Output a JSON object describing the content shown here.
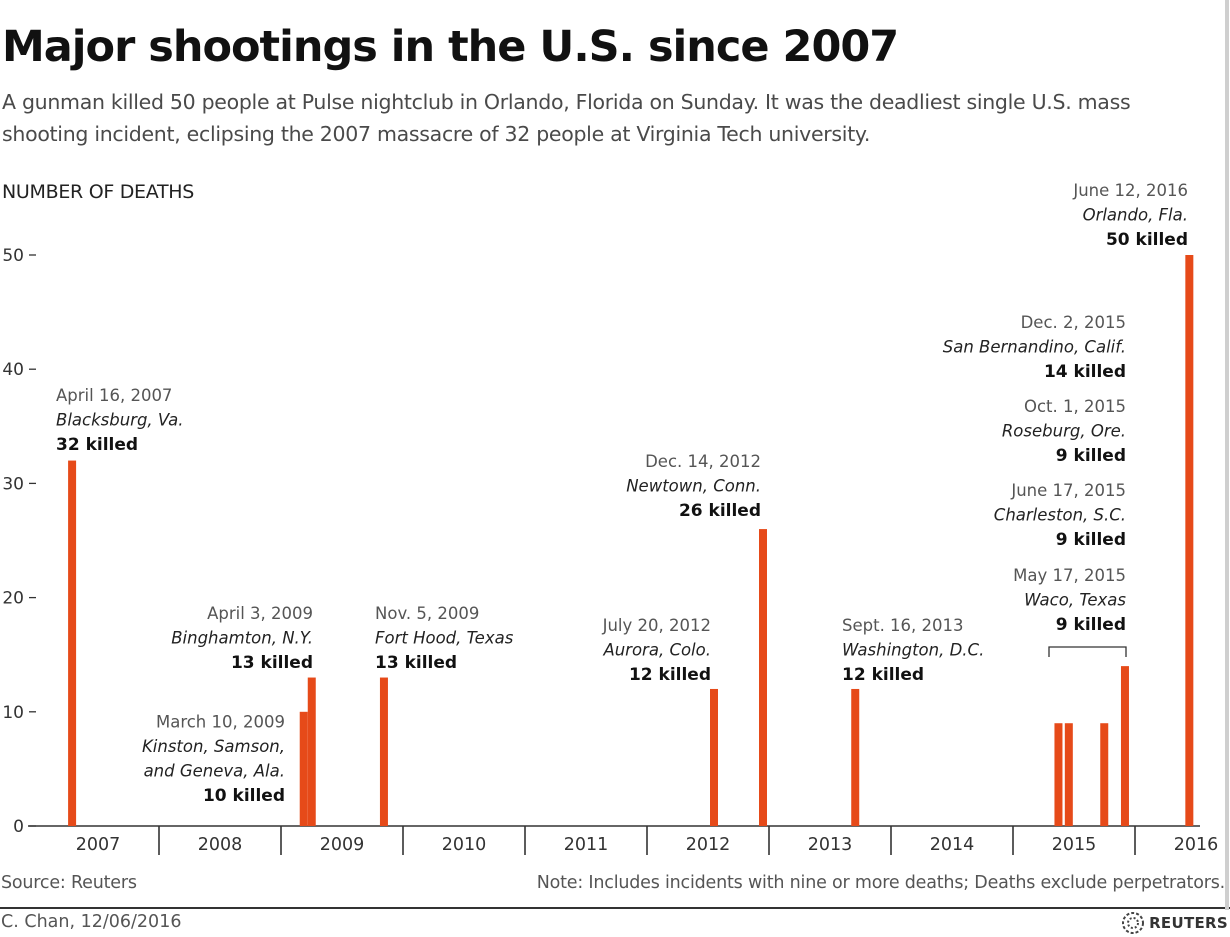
{
  "title": "Major shootings in the U.S. since 2007",
  "subtitle": "A gunman killed 50 people at Pulse nightclub in Orlando, Florida on Sunday. It was the deadliest single U.S. mass shooting incident, eclipsing the 2007 massacre of 32 people at Virginia Tech university.",
  "source": "Source: Reuters",
  "note": "Note: Includes incidents with nine or more deaths; Deaths exclude perpetrators.",
  "credit": "C. Chan,  12/06/2016",
  "logo_text": "REUTERS",
  "colors": {
    "bar": "#e64a19",
    "axis": "#333333",
    "text": "#222222",
    "muted": "#555555"
  },
  "chart_data": {
    "type": "bar",
    "ylabel": "NUMBER OF DEATHS",
    "ylim": [
      0,
      50
    ],
    "yticks": [
      0,
      10,
      20,
      30,
      40,
      50
    ],
    "x_start": "2007-01-01",
    "x_end": "2016-12-31",
    "xticks": [
      "2007",
      "2008",
      "2009",
      "2010",
      "2011",
      "2012",
      "2013",
      "2014",
      "2015",
      "2016"
    ],
    "grid": false,
    "series": [
      {
        "values": [
          {
            "date": "2007-04-16",
            "label_date": "April 16, 2007",
            "location": "Blacksburg, Va.",
            "killed": 32,
            "label": "32 killed",
            "align": "left"
          },
          {
            "date": "2009-03-10",
            "label_date": "March 10, 2009",
            "location": "Kinston, Samson, and Geneva, Ala.",
            "killed": 10,
            "label": "10 killed",
            "align": "right"
          },
          {
            "date": "2009-04-03",
            "label_date": "April 3, 2009",
            "location": "Binghamton, N.Y.",
            "killed": 13,
            "label": "13 killed",
            "align": "right"
          },
          {
            "date": "2009-11-05",
            "label_date": "Nov. 5, 2009",
            "location": "Fort Hood, Texas",
            "killed": 13,
            "label": "13 killed",
            "align": "left"
          },
          {
            "date": "2012-07-20",
            "label_date": "July 20, 2012",
            "location": "Aurora, Colo.",
            "killed": 12,
            "label": "12 killed",
            "align": "right"
          },
          {
            "date": "2012-12-14",
            "label_date": "Dec. 14, 2012",
            "location": "Newtown, Conn.",
            "killed": 26,
            "label": "26 killed",
            "align": "right"
          },
          {
            "date": "2013-09-16",
            "label_date": "Sept. 16, 2013",
            "location": "Washington, D.C.",
            "killed": 12,
            "label": "12 killed",
            "align": "left"
          },
          {
            "date": "2015-05-17",
            "label_date": "May 17, 2015",
            "location": "Waco, Texas",
            "killed": 9,
            "label": "9 killed",
            "align": "right"
          },
          {
            "date": "2015-06-17",
            "label_date": "June 17, 2015",
            "location": "Charleston, S.C.",
            "killed": 9,
            "label": "9 killed",
            "align": "right"
          },
          {
            "date": "2015-10-01",
            "label_date": "Oct. 1, 2015",
            "location": "Roseburg, Ore.",
            "killed": 9,
            "label": "9 killed",
            "align": "right"
          },
          {
            "date": "2015-12-02",
            "label_date": "Dec. 2, 2015",
            "location": "San Bernandino, Calif.",
            "killed": 14,
            "label": "14 killed",
            "align": "right"
          },
          {
            "date": "2016-06-12",
            "label_date": "June 12, 2016",
            "location": "Orlando, Fla.",
            "killed": 50,
            "label": "50 killed",
            "align": "right"
          }
        ]
      }
    ]
  }
}
